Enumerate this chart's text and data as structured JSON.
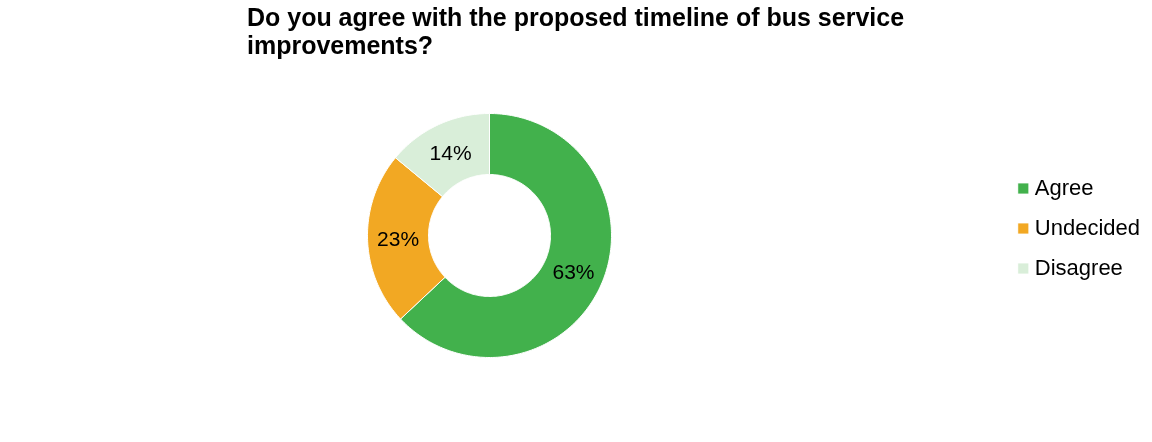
{
  "chart_data": {
    "type": "donut",
    "title": "Do you agree with the proposed timeline of bus service improvements?",
    "categories": [
      "Agree",
      "Undecided",
      "Disagree"
    ],
    "values": [
      63,
      23,
      14
    ],
    "colors": [
      "#42b14c",
      "#f2a823",
      "#d9eed9"
    ],
    "value_labels": [
      "63%",
      "23%",
      "14%"
    ],
    "legend": "right"
  }
}
